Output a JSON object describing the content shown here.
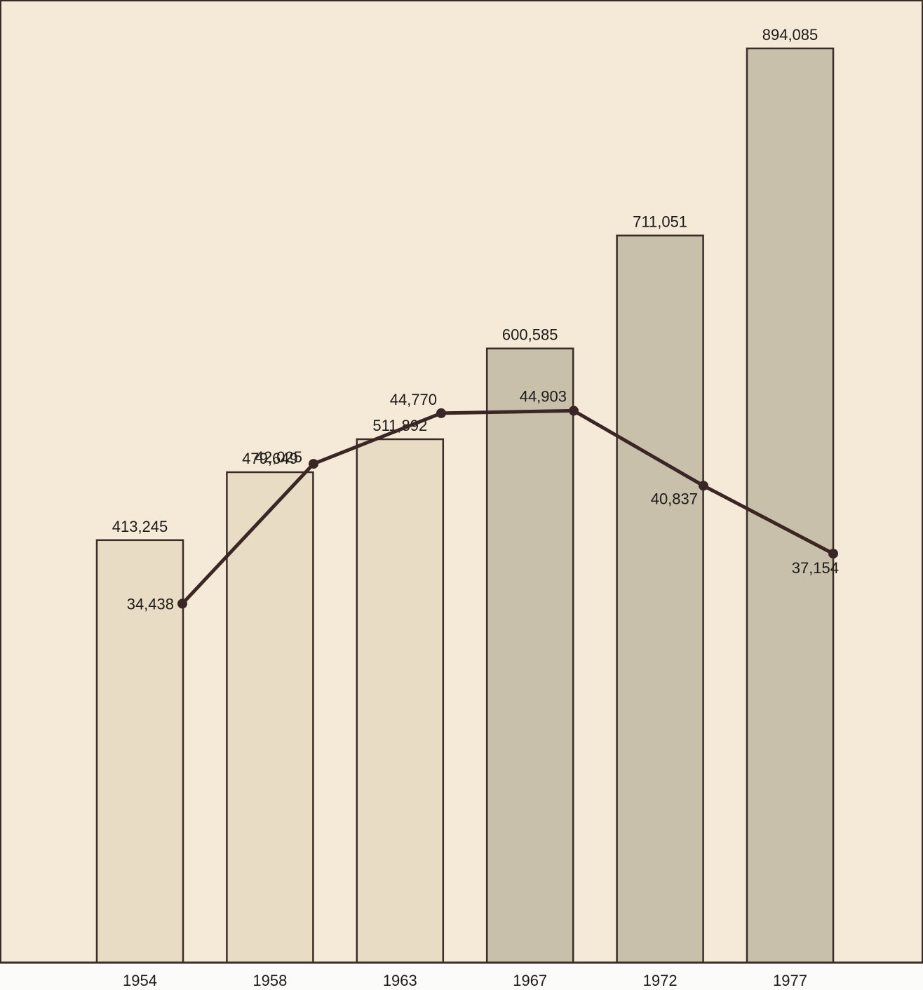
{
  "chart_data": {
    "type": "bar",
    "categories": [
      "1954",
      "1958",
      "1963",
      "1967",
      "1972",
      "1977"
    ],
    "series": [
      {
        "type": "bar",
        "values": [
          413245,
          479649,
          511892,
          600585,
          711051,
          894085
        ],
        "labels": [
          "413,245",
          "479,649",
          "511,892",
          "600,585",
          "711,051",
          "894,085"
        ]
      },
      {
        "type": "line",
        "values": [
          34438,
          42025,
          44770,
          44903,
          40837,
          37154
        ],
        "labels": [
          "34,438",
          "42,025",
          "44,770",
          "44,903",
          "40,837",
          "37,154"
        ]
      }
    ],
    "title": "",
    "xlabel": "",
    "ylabel": "",
    "legend": "none",
    "grid": false,
    "colors": {
      "background": "#f4ead7",
      "bar_light": "#e8dcc5",
      "bar_dark": "#c8c0aa",
      "outline": "#3a2c28",
      "line": "#3b2626"
    }
  }
}
